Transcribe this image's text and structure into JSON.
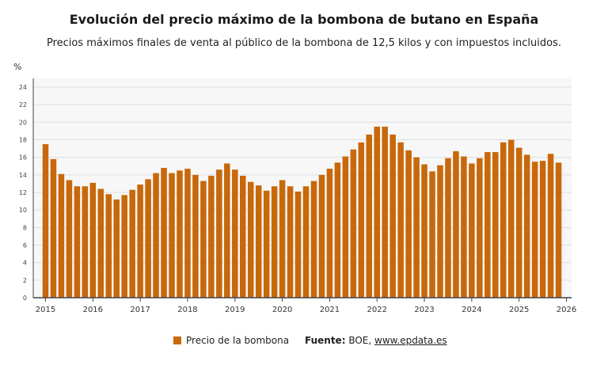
{
  "header": {
    "title": "Evolución del precio máximo de la bombona de butano en España",
    "subtitle": "Precios máximos finales de venta al público de la bombona de 12,5 kilos y con impuestos incluidos."
  },
  "legend": {
    "label": "Precio de la bombona"
  },
  "source": {
    "label": "Fuente:",
    "text": "BOE,",
    "link": "www.epdata.es"
  },
  "colors": {
    "bar": "#c8680a",
    "plot_bg": "#f7f7f7",
    "grid": "#dedede",
    "axis": "#444444"
  },
  "chart_data": {
    "type": "bar",
    "ylabel": "%",
    "ylim": [
      0,
      25
    ],
    "yticks": [
      0,
      2,
      4,
      6,
      8,
      10,
      12,
      14,
      16,
      18,
      20,
      22,
      24
    ],
    "grid": true,
    "legend_position": "bottom",
    "xticks": [
      "2015",
      "2016",
      "2017",
      "2018",
      "2019",
      "2020",
      "2021",
      "2022",
      "2023",
      "2024",
      "2025",
      "2026"
    ],
    "series": [
      {
        "name": "Precio de la bombona",
        "values": [
          17.5,
          15.8,
          14.1,
          13.4,
          12.7,
          12.7,
          13.1,
          12.4,
          11.8,
          11.2,
          11.7,
          12.3,
          12.9,
          13.5,
          14.2,
          14.8,
          14.2,
          14.5,
          14.7,
          14.0,
          13.3,
          13.9,
          14.6,
          15.3,
          14.6,
          13.9,
          13.2,
          12.8,
          12.2,
          12.7,
          13.4,
          12.7,
          12.1,
          12.7,
          13.3,
          14.0,
          14.7,
          15.4,
          16.1,
          16.9,
          17.7,
          18.6,
          19.5,
          19.5,
          18.6,
          17.7,
          16.8,
          16.0,
          15.2,
          14.4,
          15.1,
          15.9,
          16.7,
          16.1,
          15.3,
          15.9,
          16.6,
          16.6,
          17.7,
          18.0,
          17.1,
          16.3,
          15.5,
          15.6,
          16.4,
          15.4
        ]
      }
    ]
  }
}
